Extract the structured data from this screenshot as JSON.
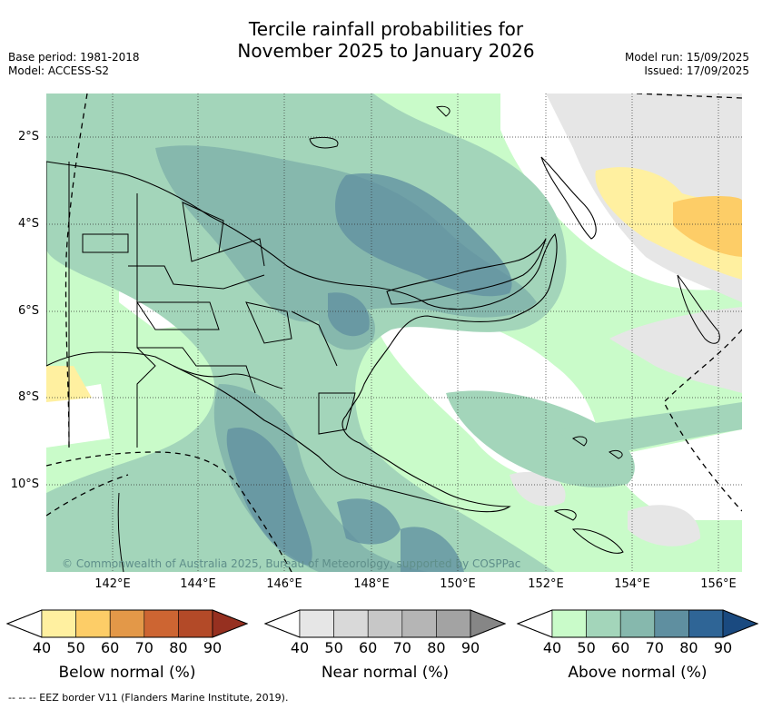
{
  "title_line1": "Tercile rainfall probabilities for",
  "title_line2": "November 2025 to January 2026",
  "meta_left": {
    "base_period": "Base period: 1981-2018",
    "model": "Model: ACCESS-S2"
  },
  "meta_right": {
    "model_run": "Model run: 15/09/2025",
    "issued": "Issued: 17/09/2025"
  },
  "lat_labels": [
    "2°S",
    "4°S",
    "6°S",
    "8°S",
    "10°S"
  ],
  "lon_labels": [
    "142°E",
    "144°E",
    "146°E",
    "148°E",
    "150°E",
    "152°E",
    "154°E",
    "156°E"
  ],
  "copyright": "© Commonwealth of Australia 2025, Bureau of Meteorology, supported by COSPPac",
  "colorbars": [
    {
      "title": "Below normal (%)",
      "ticks": [
        "40",
        "50",
        "60",
        "70",
        "80",
        "90"
      ],
      "colors": [
        "#fff0a0",
        "#fdcd67",
        "#e39848",
        "#cd6532",
        "#b34a28",
        "#963020"
      ]
    },
    {
      "title": "Near normal (%)",
      "ticks": [
        "40",
        "50",
        "60",
        "70",
        "80",
        "90"
      ],
      "colors": [
        "#e6e6e6",
        "#d9d9d9",
        "#c7c7c7",
        "#b5b5b5",
        "#a3a3a3",
        "#868686"
      ]
    },
    {
      "title": "Above normal (%)",
      "ticks": [
        "40",
        "50",
        "60",
        "70",
        "80",
        "90"
      ],
      "colors": [
        "#c9fbc9",
        "#a3d5ba",
        "#86b8ad",
        "#5f8fa0",
        "#2f6596",
        "#1a4a80"
      ]
    }
  ],
  "footer": "-- -- -- EEZ border V11 (Flanders Marine Institute, 2019)."
}
